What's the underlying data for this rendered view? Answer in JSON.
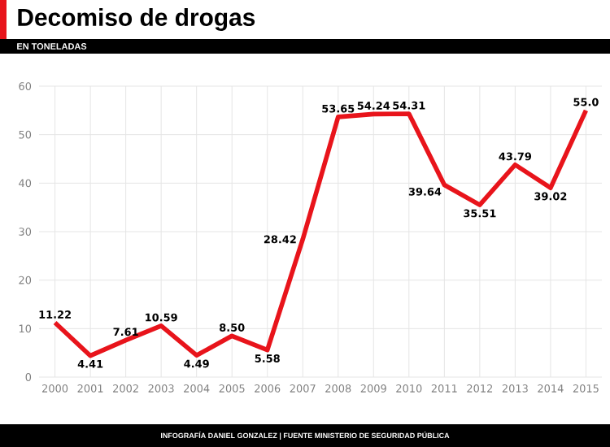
{
  "chart_data": {
    "type": "line",
    "title": "Decomiso de drogas",
    "subtitle": "EN TONELADAS",
    "categories": [
      "2000",
      "2001",
      "2002",
      "2003",
      "2004",
      "2005",
      "2006",
      "2007",
      "2008",
      "2009",
      "2010",
      "2011",
      "2012",
      "2013",
      "2014",
      "2015"
    ],
    "values": [
      11.22,
      4.41,
      7.61,
      10.59,
      4.49,
      8.5,
      5.58,
      28.42,
      53.65,
      54.24,
      54.31,
      39.64,
      35.51,
      43.79,
      39.02,
      55.0
    ],
    "value_labels": [
      "11.22",
      "4.41",
      "7.61",
      "10.59",
      "4.49",
      "8.50",
      "5.58",
      "28.42",
      "53.65",
      "54.24",
      "54.31",
      "39.64",
      "35.51",
      "43.79",
      "39.02",
      "55.0"
    ],
    "color": "#e8141b",
    "ylim": [
      0,
      60
    ],
    "yticks": [
      0,
      10,
      20,
      30,
      40,
      50,
      60
    ],
    "grid": true,
    "annotations": [
      "INFOGRAFÍA DANIEL GONZALEZ | FUENTE MINISTERIO DE SEGURIDAD PÚBLICA"
    ]
  }
}
